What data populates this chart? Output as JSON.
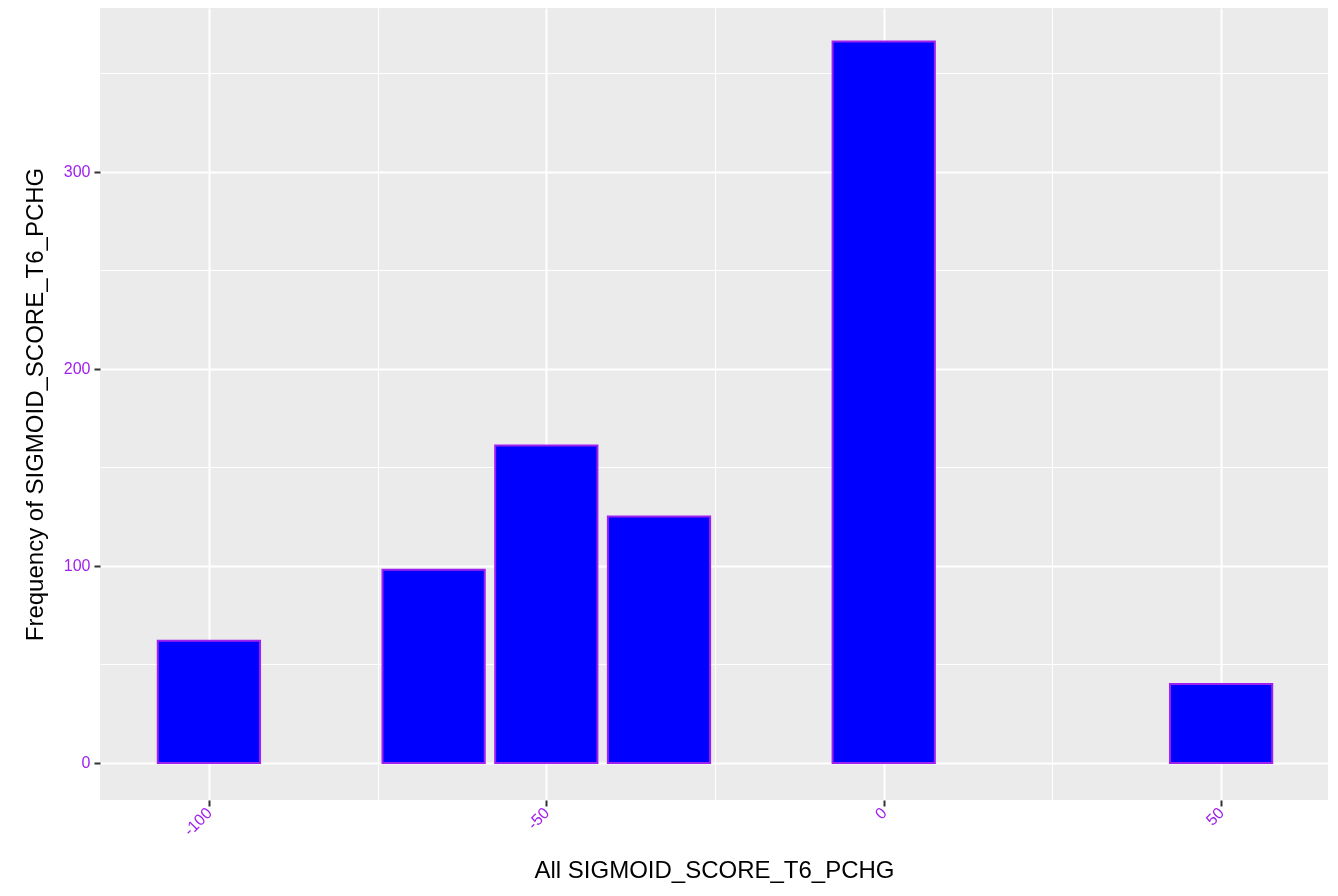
{
  "chart_data": {
    "type": "bar",
    "xlabel": "All SIGMOID_SCORE_T6_PCHG",
    "ylabel": "Frequency of SIGMOID_SCORE_T6_PCHG",
    "x": [
      -100,
      -66.7,
      -50,
      -33.3,
      0,
      50
    ],
    "values": [
      62,
      98,
      161,
      125,
      366,
      40
    ],
    "color": "#0000ff",
    "xlim": [
      -115.4,
      65.1
    ],
    "xticks": [
      -100,
      {
        "value": -75,
        "label": null
      },
      -50,
      {
        "value": -25,
        "label": null
      },
      0,
      {
        "value": 25,
        "label": null
      },
      50
    ],
    "ylim": [
      -18.8,
      383
    ],
    "yticks": [
      0,
      {
        "value": 50,
        "label": null
      },
      100,
      {
        "value": 150,
        "label": null
      },
      200,
      {
        "value": 250,
        "label": null
      },
      300,
      {
        "value": 350,
        "label": null
      }
    ],
    "grid": true
  }
}
